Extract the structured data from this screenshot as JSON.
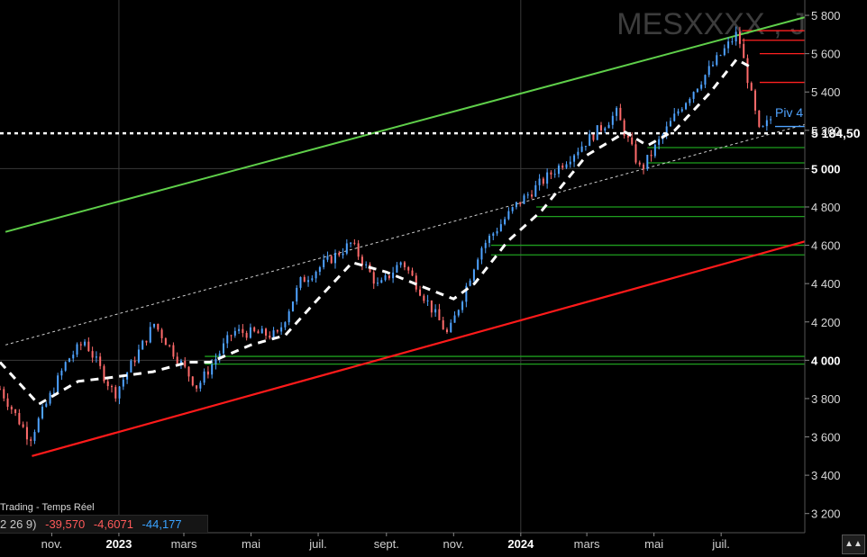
{
  "instrument": {
    "symbol": "MESXXXX , J"
  },
  "status": {
    "label": "Trading - Temps Réel",
    "values": [
      "2 26 9)",
      "-39,570",
      "-4,6071",
      "-44,177"
    ]
  },
  "colors": {
    "background": "#000000",
    "candle_up": "#4fa3ff",
    "candle_down": "#ff6b6b",
    "upper_channel": "#5fcf4a",
    "lower_channel": "#ff1a1a",
    "support_lines": "#1e9e1e",
    "resistance_lines": "#ff2020",
    "moving_average": "#ffffff",
    "pivot_label": "#4fa3ff"
  },
  "chart_data": {
    "type": "candlestick",
    "title": "MESXXXX , J",
    "y_axis": {
      "ticks": [
        "3 200",
        "3 400",
        "3 600",
        "3 800",
        "4 000",
        "4 200",
        "4 400",
        "4 600",
        "4 800",
        "5 000",
        "5 200",
        "5 400",
        "5 600",
        "5 800"
      ],
      "tick_values": [
        3200,
        3400,
        3600,
        3800,
        4000,
        4200,
        4400,
        4600,
        4800,
        5000,
        5200,
        5400,
        5600,
        5800
      ],
      "bold_ticks": [
        "4 000",
        "5 000"
      ],
      "range": [
        3100,
        5880
      ]
    },
    "x_axis": {
      "ticks": [
        "nov.",
        "2023",
        "mars",
        "mai",
        "juil.",
        "sept.",
        "nov.",
        "2024",
        "mars",
        "mai",
        "juil."
      ],
      "tick_dates": [
        "2022-11",
        "2023-01",
        "2023-03",
        "2023-05",
        "2023-07",
        "2023-09",
        "2023-11",
        "2024-01",
        "2024-03",
        "2024-05",
        "2024-07"
      ],
      "bold_ticks": [
        "2023",
        "2024"
      ],
      "range": [
        "2022-09-15",
        "2024-09-15"
      ]
    },
    "current_price": {
      "label": "5 184,50",
      "value": 5184.5
    },
    "pivot_label": "Piv 4",
    "price_path": [
      {
        "date": "2022-09-15",
        "close": 3850
      },
      {
        "date": "2022-10-12",
        "close": 3590
      },
      {
        "date": "2022-11-15",
        "close": 4000
      },
      {
        "date": "2022-12-01",
        "close": 4100
      },
      {
        "date": "2022-12-28",
        "close": 3820
      },
      {
        "date": "2023-02-02",
        "close": 4190
      },
      {
        "date": "2023-03-13",
        "close": 3860
      },
      {
        "date": "2023-04-15",
        "close": 4150
      },
      {
        "date": "2023-05-25",
        "close": 4130
      },
      {
        "date": "2023-06-15",
        "close": 4410
      },
      {
        "date": "2023-07-31",
        "close": 4610
      },
      {
        "date": "2023-08-25",
        "close": 4380
      },
      {
        "date": "2023-09-15",
        "close": 4520
      },
      {
        "date": "2023-10-27",
        "close": 4130
      },
      {
        "date": "2023-11-25",
        "close": 4580
      },
      {
        "date": "2023-12-28",
        "close": 4810
      },
      {
        "date": "2024-02-12",
        "close": 5050
      },
      {
        "date": "2024-03-28",
        "close": 5290
      },
      {
        "date": "2024-04-19",
        "close": 4990
      },
      {
        "date": "2024-05-25",
        "close": 5320
      },
      {
        "date": "2024-07-16",
        "close": 5710
      },
      {
        "date": "2024-08-05",
        "close": 5180
      },
      {
        "date": "2024-08-15",
        "close": 5260
      }
    ],
    "moving_average": [
      {
        "date": "2022-09-15",
        "value": 3990
      },
      {
        "date": "2022-10-20",
        "value": 3770
      },
      {
        "date": "2022-11-25",
        "value": 3890
      },
      {
        "date": "2022-12-25",
        "value": 3910
      },
      {
        "date": "2023-02-01",
        "value": 3940
      },
      {
        "date": "2023-03-05",
        "value": 3990
      },
      {
        "date": "2023-03-25",
        "value": 3990
      },
      {
        "date": "2023-05-01",
        "value": 4080
      },
      {
        "date": "2023-06-01",
        "value": 4130
      },
      {
        "date": "2023-07-01",
        "value": 4320
      },
      {
        "date": "2023-08-01",
        "value": 4510
      },
      {
        "date": "2023-09-01",
        "value": 4460
      },
      {
        "date": "2023-10-01",
        "value": 4390
      },
      {
        "date": "2023-11-01",
        "value": 4320
      },
      {
        "date": "2023-11-20",
        "value": 4400
      },
      {
        "date": "2023-12-20",
        "value": 4620
      },
      {
        "date": "2024-01-20",
        "value": 4780
      },
      {
        "date": "2024-03-01",
        "value": 5070
      },
      {
        "date": "2024-04-05",
        "value": 5190
      },
      {
        "date": "2024-04-25",
        "value": 5120
      },
      {
        "date": "2024-05-20",
        "value": 5200
      },
      {
        "date": "2024-06-20",
        "value": 5390
      },
      {
        "date": "2024-07-15",
        "value": 5570
      },
      {
        "date": "2024-07-31",
        "value": 5520
      }
    ],
    "upper_channel": {
      "start": {
        "date": "2022-09-20",
        "value": 4670
      },
      "end": {
        "date": "2024-09-15",
        "value": 5790
      }
    },
    "lower_channel": {
      "start": {
        "date": "2022-10-14",
        "value": 3500
      },
      "end": {
        "date": "2024-09-15",
        "value": 4620
      }
    },
    "mid_trendline": {
      "start": {
        "date": "2022-09-20",
        "value": 4080
      },
      "end": {
        "date": "2024-09-15",
        "value": 5230
      }
    },
    "support_levels": [
      {
        "value": 3980,
        "from": "2023-03-20"
      },
      {
        "value": 4020,
        "from": "2023-03-20"
      },
      {
        "value": 4550,
        "from": "2023-12-05"
      },
      {
        "value": 4600,
        "from": "2023-12-05"
      },
      {
        "value": 4750,
        "from": "2024-01-15"
      },
      {
        "value": 4800,
        "from": "2024-01-15"
      },
      {
        "value": 5030,
        "from": "2024-04-25"
      },
      {
        "value": 5110,
        "from": "2024-04-25"
      }
    ],
    "resistance_levels": [
      {
        "value": 5450,
        "from": "2024-08-05"
      },
      {
        "value": 5600,
        "from": "2024-08-05"
      },
      {
        "value": 5670,
        "from": "2024-07-20"
      },
      {
        "value": 5720,
        "from": "2024-07-20"
      }
    ],
    "gridlines": {
      "horizontal": [
        4000,
        5000
      ],
      "vertical": [
        "2023-01",
        "2024-01"
      ]
    }
  }
}
